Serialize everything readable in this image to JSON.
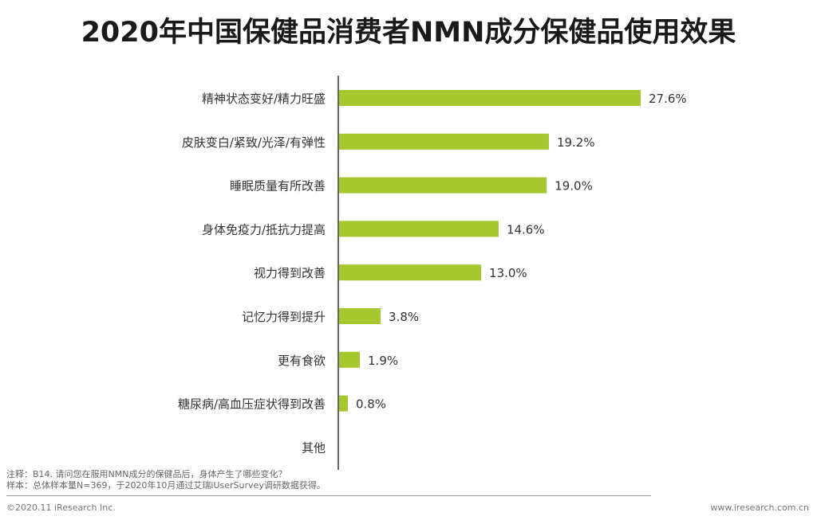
{
  "title": "2020年中国保健品消费者NMN成分保健品使用效果",
  "colors": {
    "bar": "#a6c72d",
    "axis": "#333333",
    "label": "#333333"
  },
  "chart_data": {
    "type": "bar",
    "orientation": "horizontal",
    "categories": [
      "精神状态变好/精力旺盛",
      "皮肤变白/紧致/光泽/有弹性",
      "睡眠质量有所改善",
      "身体免疫力/抵抗力提高",
      "视力得到改善",
      "记忆力得到提升",
      "更有食欲",
      "糖尿病/高血压症状得到改善",
      "其他"
    ],
    "values": [
      27.6,
      19.2,
      19.0,
      14.6,
      13.0,
      3.8,
      1.9,
      0.8,
      null
    ],
    "value_labels": [
      "27.6%",
      "19.2%",
      "19.0%",
      "14.6%",
      "13.0%",
      "3.8%",
      "1.9%",
      "0.8%",
      ""
    ],
    "unit": "%",
    "xlim": [
      0,
      27.6
    ],
    "grid": false,
    "legend": "none"
  },
  "notes": {
    "line1": "注释：B14. 请问您在服用NMN成分的保健品后，身体产生了哪些变化？",
    "line2": "样本：总体样本量N=369，于2020年10月通过艾瑞iUserSurvey调研数据获得。"
  },
  "footer": {
    "copyright": "©2020.11 iResearch Inc.",
    "website": "www.iresearch.com.cn"
  }
}
